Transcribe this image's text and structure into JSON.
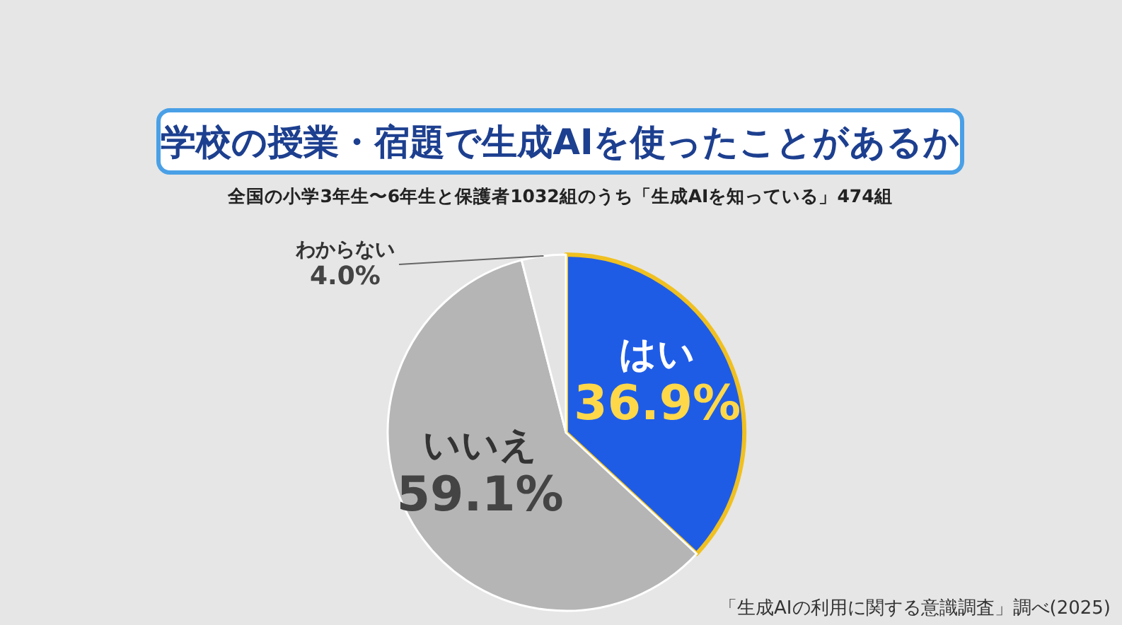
{
  "chart_data": {
    "type": "pie",
    "title": "学校の授業・宿題で生成AIを使ったことがあるか",
    "subtitle": "全国の小学3年生〜6年生と保護者1032組のうち「生成AIを知っている」474組",
    "categories": [
      "はい",
      "いいえ",
      "わからない"
    ],
    "values": [
      36.9,
      59.1,
      4.0
    ],
    "colors": [
      "#1f5ce6",
      "#b5b5b5",
      "#e4e4e4"
    ],
    "value_labels": [
      "36.9%",
      "59.1%",
      "4.0%"
    ],
    "legend": false,
    "annotations": [
      "「生成AIの利用に関する意識調査」調べ(2025)"
    ]
  }
}
